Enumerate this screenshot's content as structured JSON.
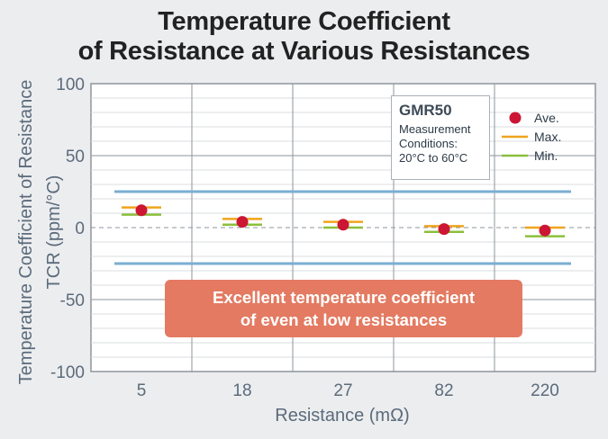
{
  "title_lines": [
    "Temperature Coefficient",
    "of Resistance at Various Resistances"
  ],
  "legend": {
    "model": "GMR50",
    "conditions": [
      "Measurement",
      "Conditions:",
      "20°C to 60°C"
    ],
    "items": [
      {
        "label": "Ave.",
        "color": "#cc1634"
      },
      {
        "label": "Max.",
        "color": "#f0a41c"
      },
      {
        "label": "Min.",
        "color": "#8cbf3d"
      }
    ]
  },
  "callout": [
    "Excellent temperature coefficient",
    "of even at  low resistances"
  ],
  "colors": {
    "limit_line": "#7aaed3",
    "avg": "#cc1634",
    "max": "#f0a41c",
    "min": "#8cbf3d",
    "callout_bg": "#e37a61",
    "axis_text": "#5b6b7b"
  },
  "chart_data": {
    "type": "scatter",
    "title": "Temperature Coefficient of Resistance at Various Resistances",
    "xlabel": "Resistance (mΩ)",
    "ylabel_lines": [
      "Temperature Coefficient of Resistance",
      "TCR (ppm/°C)"
    ],
    "categories": [
      "5",
      "18",
      "27",
      "82",
      "220"
    ],
    "ylim": [
      -100,
      100
    ],
    "yticks": [
      "100",
      "50",
      "0",
      "-50",
      "-100"
    ],
    "grid": true,
    "zero_line": "dashed",
    "limit_lines": [
      25,
      -25
    ],
    "series": [
      {
        "name": "Ave.",
        "values": [
          12,
          4,
          2,
          -1,
          -2
        ]
      },
      {
        "name": "Max.",
        "values": [
          14,
          6,
          4,
          1,
          0
        ]
      },
      {
        "name": "Min.",
        "values": [
          9,
          2,
          0,
          -3,
          -6
        ]
      }
    ]
  }
}
